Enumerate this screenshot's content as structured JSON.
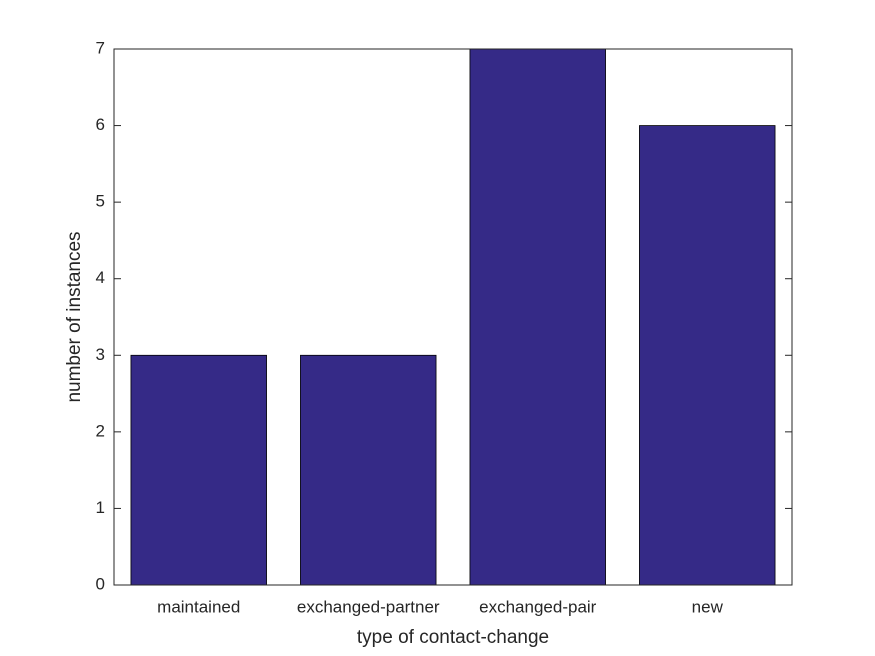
{
  "chart_data": {
    "type": "bar",
    "categories": [
      "maintained",
      "exchanged-partner",
      "exchanged-pair",
      "new"
    ],
    "values": [
      3,
      3,
      7,
      6
    ],
    "color": "#352a87",
    "xlabel": "type of contact-change",
    "ylabel": "number of instances",
    "ylim": [
      0,
      7
    ],
    "yticks": [
      0,
      1,
      2,
      3,
      4,
      5,
      6,
      7
    ]
  }
}
